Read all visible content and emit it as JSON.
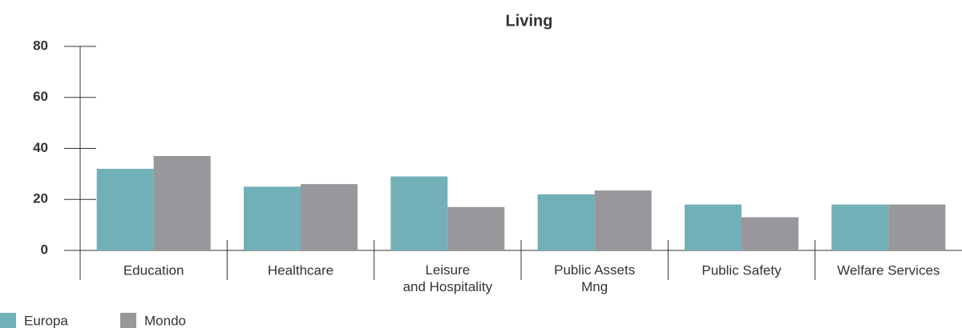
{
  "chart_data": {
    "type": "bar",
    "title": "Living",
    "categories": [
      "Education",
      "Healthcare",
      "Leisure\nand Hospitality",
      "Public Assets\nMng",
      "Public Safety",
      "Welfare Services"
    ],
    "series": [
      {
        "name": "Europa",
        "color": "#72b0b8",
        "values": [
          32,
          25,
          29,
          22,
          18,
          18
        ]
      },
      {
        "name": "Mondo",
        "color": "#98989c",
        "values": [
          37,
          26,
          17,
          23.5,
          13,
          18
        ]
      }
    ],
    "ylim": [
      0,
      80
    ],
    "yticks": [
      0,
      20,
      40,
      60,
      80
    ]
  }
}
